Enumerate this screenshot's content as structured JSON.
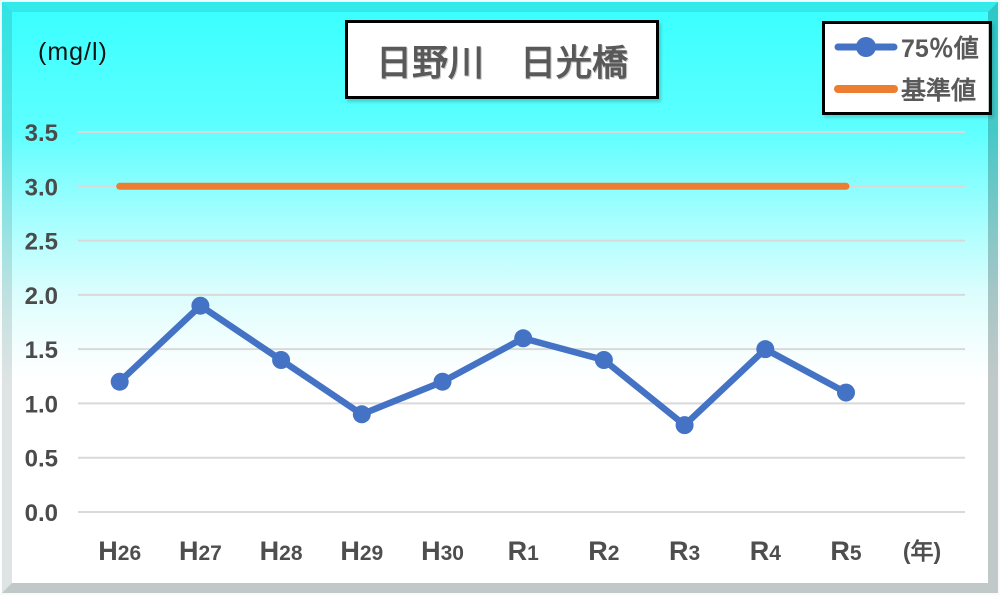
{
  "title": "日野川　日光橋",
  "unit_label": "(mg/l)",
  "legend": {
    "items": [
      {
        "label": "75％値",
        "color": "#4472C4",
        "type": "line-marker"
      },
      {
        "label": "基準値",
        "color": "#ED7D31",
        "type": "line"
      }
    ]
  },
  "colors": {
    "series_blue": "#4472C4",
    "standard_orange": "#ED7D31",
    "grid": "#d9d9d9",
    "tick_text": "#4b4b4b",
    "title_text": "#595959"
  },
  "chart_data": {
    "type": "line",
    "title": "日野川　日光橋",
    "categories": [
      "H26",
      "H27",
      "H28",
      "H29",
      "H30",
      "R1",
      "R2",
      "R3",
      "R4",
      "R5"
    ],
    "series": [
      {
        "name": "75％値",
        "values": [
          1.2,
          1.9,
          1.4,
          0.9,
          1.2,
          1.6,
          1.4,
          0.8,
          1.5,
          1.1
        ],
        "color": "#4472C4",
        "marker": "circle",
        "stroke_width": 6.5
      },
      {
        "name": "基準値",
        "values": [
          3.0,
          3.0,
          3.0,
          3.0,
          3.0,
          3.0,
          3.0,
          3.0,
          3.0,
          3.0
        ],
        "color": "#ED7D31",
        "marker": "none",
        "stroke_width": 7
      }
    ],
    "ylabel": "(mg/l)",
    "xlabel": "(年)",
    "ylim": [
      0.0,
      3.5
    ],
    "ytick_step": 0.5,
    "yticks": [
      "3.5",
      "3.0",
      "2.5",
      "2.0",
      "1.5",
      "1.0",
      "0.5",
      "0.0"
    ],
    "grid": true,
    "legend_position": "top-right"
  }
}
